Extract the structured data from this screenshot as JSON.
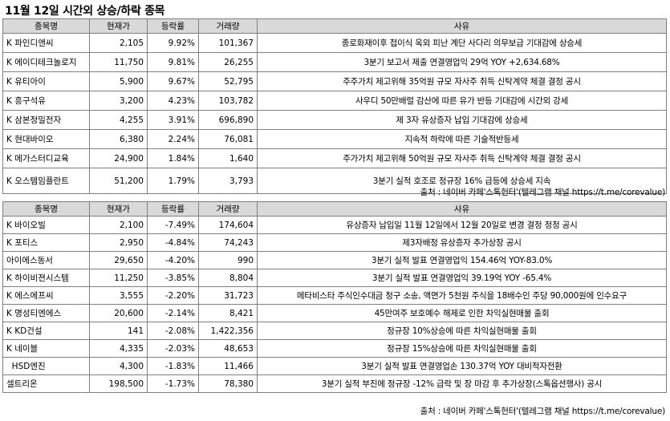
{
  "title": "11월 12일  시간외 상승/하락 종목",
  "headers": {
    "name": "종목명",
    "price": "현재가",
    "rate": "등락률",
    "volume": "거래량",
    "reason": "사유"
  },
  "rising": [
    {
      "name": "K 파인디앤씨",
      "price": "2,105",
      "rate": "9.92%",
      "volume": "101,367",
      "reason": "종로화재이후 접이식 옥외 피난 계단 사다리 의무보급 기대감에 상승세"
    },
    {
      "name": "K 에이디테크놀로지",
      "price": "11,750",
      "rate": "9.81%",
      "volume": "26,255",
      "reason": "3분기 보고서 제출 연결영업익 29억 YOY +2,634.68%"
    },
    {
      "name": "K 유티아이",
      "price": "5,900",
      "rate": "9.67%",
      "volume": "52,795",
      "reason": "주주가치 제고위해  35억원 규모 자사주 취득 신탁계약 체결 결정 공시"
    },
    {
      "name": "K 흥구석유",
      "price": "3,200",
      "rate": "4.23%",
      "volume": "103,782",
      "reason": "사우디 50만배럴 감산에 따른 유가 반등 기대감에 시간외 강세"
    },
    {
      "name": "K 삼본정밀전자",
      "price": "4,255",
      "rate": "3.91%",
      "volume": "696,890",
      "reason": "제 3자 유상증자 납입 기대감에 상승세"
    },
    {
      "name": "K 현대바이오",
      "price": "6,380",
      "rate": "2.24%",
      "volume": "76,081",
      "reason": "지속적 하락에 따른 기술적반등세"
    },
    {
      "name": "K 메가스터디교육",
      "price": "24,900",
      "rate": "1.84%",
      "volume": "1,640",
      "reason": "주가가치 제고위해  50억원 규모 자사주 취득 신탁계약 체결 결정 공시"
    },
    {
      "name": "K 오스템임플란트",
      "price": "51,200",
      "rate": "1.79%",
      "volume": "3,793",
      "reason": "3분기 실적 호조로 정규장 16% 급등에 상승세 지속"
    }
  ],
  "source1": "출처 : 네이버 카페'스톡헌터'(텔레그램 채널 https://t.me/corevalue)",
  "falling": [
    {
      "name": "K 바이오빌",
      "price": "2,100",
      "rate": "-7.49%",
      "volume": "174,604",
      "reason": "유상증자 납입일 11월 12일에서 12월 20일로  변경 결정 정정 공시"
    },
    {
      "name": "K 포티스",
      "price": "2,950",
      "rate": "-4.84%",
      "volume": "74,243",
      "reason": "제3자배정 유상증자 추가상장 공시"
    },
    {
      "name": "아이에스동서",
      "price": "29,650",
      "rate": "-4.20%",
      "volume": "990",
      "reason": "3분기 실적 발표 연결영업익 154.46억 YOY-83.0%"
    },
    {
      "name": "K 하이비젼시스템",
      "price": "11,250",
      "rate": "-3.85%",
      "volume": "8,804",
      "reason": "3분기 실적 발표 연결영업익 39.19억 YOY -65.4%"
    },
    {
      "name": "K 에스에프씨",
      "price": "3,555",
      "rate": "-2.20%",
      "volume": "31,723",
      "reason": "메타비스타 주식인수대금 청구 소송, 액면가 5천원 주식을 18배수인 주당 90,000원에 인수요구"
    },
    {
      "name": "K 명성티엔에스",
      "price": "20,600",
      "rate": "-2.14%",
      "volume": "8,421",
      "reason": "45만여주 보호예수 해제로 인한 차익실현매물 출회"
    },
    {
      "name": "K KD건설",
      "price": "141",
      "rate": "-2.08%",
      "volume": "1,422,356",
      "reason": "정규장 10%상승에 따른 차익실현매물 출회"
    },
    {
      "name": "K 네이블",
      "price": "4,335",
      "rate": "-2.03%",
      "volume": "48,653",
      "reason": "정규장 15%상승에 따른 차익실현매물 출회"
    },
    {
      "name": "  HSD엔진",
      "price": "4,300",
      "rate": "-1.83%",
      "volume": "11,466",
      "reason": "3분기 실적 발표 연결영업손 130.37억 YOY 대비적자전환"
    },
    {
      "name": "셀트리온",
      "price": "198,500",
      "rate": "-1.73%",
      "volume": "78,380",
      "reason": "3분기 실적 부진에 정규장 -12% 급락 및 장 마감 후 추가상장(스톡옵션행사) 공시"
    }
  ],
  "source2": "출처 : 네이버 카페'스톡헌터'(텔레그램 채널 https://t.me/corevalue)"
}
